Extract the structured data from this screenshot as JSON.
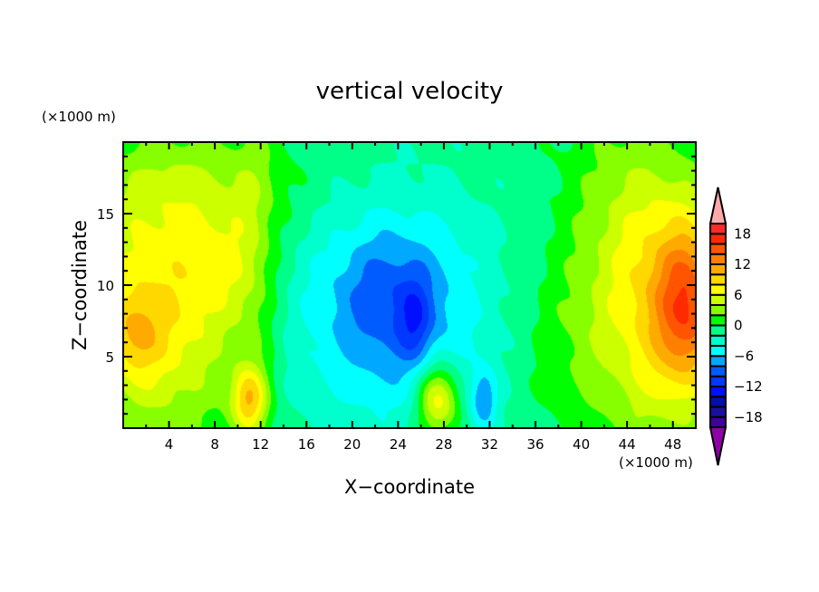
{
  "chart_data": {
    "type": "heatmap",
    "subtype": "filled-contour",
    "title": "vertical velocity",
    "xlabel": "X−coordinate",
    "ylabel": "Z−coordinate",
    "x_unit": "(×1000 m)",
    "y_unit": "(×1000 m)",
    "xlim": [
      0,
      50
    ],
    "ylim": [
      0,
      20
    ],
    "x_ticks": [
      "4",
      "8",
      "12",
      "16",
      "20",
      "24",
      "28",
      "32",
      "36",
      "40",
      "44",
      "48"
    ],
    "x_tick_values": [
      4,
      8,
      12,
      16,
      20,
      24,
      28,
      32,
      36,
      40,
      44,
      48
    ],
    "y_ticks": [
      "5",
      "10",
      "15"
    ],
    "y_tick_values": [
      5,
      10,
      15
    ],
    "colorbar": {
      "levels": [
        -20,
        -18,
        -16,
        -14,
        -12,
        -10,
        -8,
        -6,
        -4,
        -2,
        0,
        2,
        4,
        6,
        8,
        10,
        12,
        14,
        16,
        18,
        20
      ],
      "labels": [
        "18",
        "12",
        "6",
        "0",
        "−6",
        "−12",
        "−18"
      ],
      "label_values": [
        18,
        12,
        6,
        0,
        -6,
        -12,
        -18
      ],
      "colors": [
        "#4000a0",
        "#1a10a0",
        "#0010a8",
        "#0010ff",
        "#0038ff",
        "#005cff",
        "#00a8ff",
        "#00ffff",
        "#00ffcc",
        "#00ff88",
        "#00ff00",
        "#88ff00",
        "#ccff00",
        "#ffff00",
        "#ffd800",
        "#ffaa00",
        "#ff7f00",
        "#ff5500",
        "#ff2a00",
        "#ff2a2a"
      ],
      "under_color": "#9000a8",
      "over_color": "#ffaaaa"
    },
    "field_base": -1,
    "field_features": [
      {
        "x": 3,
        "z": 8,
        "amp": 9,
        "sx": 5,
        "sz": 6
      },
      {
        "x": 1,
        "z": 6.5,
        "amp": 4,
        "sx": 1.5,
        "sz": 2
      },
      {
        "x": 9,
        "z": 11.5,
        "amp": 3.5,
        "sx": 2.5,
        "sz": 3
      },
      {
        "x": 6,
        "z": 17,
        "amp": 3.5,
        "sx": 7,
        "sz": 3
      },
      {
        "x": 11.5,
        "z": 10,
        "amp": 2,
        "sx": 1.5,
        "sz": 12
      },
      {
        "x": 23,
        "z": 8,
        "amp": -5,
        "sx": 7,
        "sz": 6
      },
      {
        "x": 23.5,
        "z": 9,
        "amp": -4,
        "sx": 3.5,
        "sz": 3.5
      },
      {
        "x": 25.5,
        "z": 7.5,
        "amp": -4,
        "sx": 1,
        "sz": 2
      },
      {
        "x": 11,
        "z": 2,
        "amp": 9,
        "sx": 1.1,
        "sz": 1.6
      },
      {
        "x": 27.5,
        "z": 2,
        "amp": 10,
        "sx": 1.3,
        "sz": 1.8
      },
      {
        "x": 31.5,
        "z": 2,
        "amp": -6,
        "sx": 0.8,
        "sz": 1.5
      },
      {
        "x": 49.5,
        "z": 8.5,
        "amp": 11,
        "sx": 2,
        "sz": 4
      },
      {
        "x": 47,
        "z": 9,
        "amp": 7,
        "sx": 3.5,
        "sz": 7
      },
      {
        "x": 43,
        "z": 11,
        "amp": 3.5,
        "sx": 4,
        "sz": 9
      },
      {
        "x": 38,
        "z": 6,
        "amp": 1.5,
        "sx": 3,
        "sz": 4
      }
    ]
  }
}
